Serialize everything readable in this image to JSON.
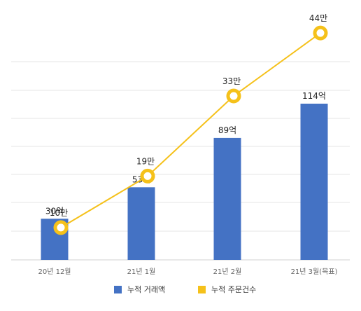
{
  "chart_data": {
    "type": "bar",
    "categories": [
      "20년 12월",
      "21년 1월",
      "21년 2월",
      "21년 3월(목표)"
    ],
    "series": [
      {
        "name": "누적 거래액",
        "type": "bar",
        "values": [
          30,
          53,
          89,
          114
        ],
        "labels": [
          "30억",
          "53억",
          "89억",
          "114억"
        ],
        "color": "#4472C4"
      },
      {
        "name": "누적 주문건수",
        "type": "line",
        "values": [
          10,
          19,
          33,
          44
        ],
        "labels": [
          "10만",
          "19만",
          "33만",
          "44만"
        ],
        "color": "#F5C11A"
      }
    ],
    "grid": true,
    "legend_position": "bottom",
    "title": "",
    "xlabel": "",
    "ylabel": ""
  }
}
